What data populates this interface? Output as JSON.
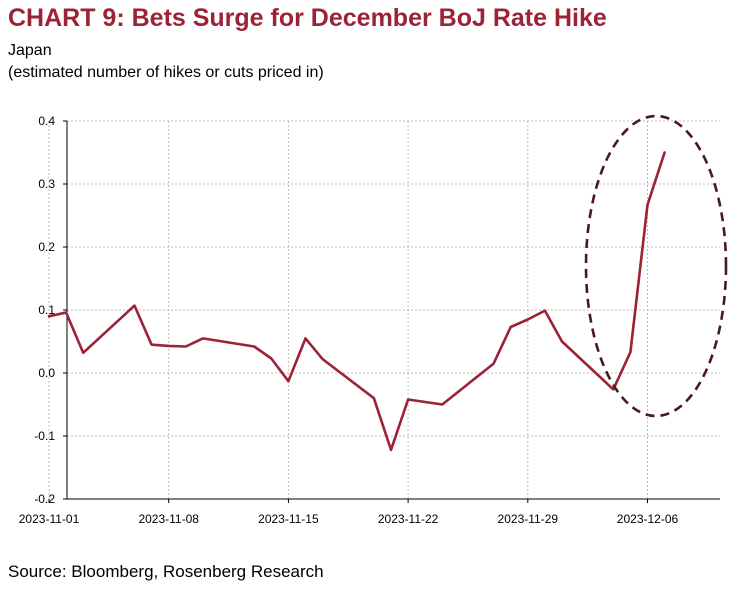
{
  "title": "CHART 9: Bets Surge for December BoJ Rate Hike",
  "subtitle_line1": "Japan",
  "subtitle_line2": "(estimated number of hikes or cuts priced in)",
  "source": "Source: Bloomberg, Rosenberg Research",
  "colors": {
    "title": "#9b2335",
    "series": "#9b2335",
    "ellipse": "#4a1a1a",
    "grid": "#bdbdbd",
    "axis": "#000000"
  },
  "chart_data": {
    "type": "line",
    "title": "CHART 9: Bets Surge for December BoJ Rate Hike",
    "xlabel": "",
    "ylabel": "",
    "ylim": [
      -0.2,
      0.4
    ],
    "yticks": [
      "-0.2",
      "-0.1",
      "0.0",
      "0.1",
      "0.2",
      "0.3",
      "0.4"
    ],
    "xticks": [
      "2023-11-01",
      "2023-11-08",
      "2023-11-15",
      "2023-11-22",
      "2023-11-29",
      "2023-12-06"
    ],
    "grid": true,
    "annotation": "dashed ellipse highlighting the final days",
    "series": [
      {
        "x": [
          "2023-11-01",
          "2023-11-02",
          "2023-11-03",
          "2023-11-06",
          "2023-11-07",
          "2023-11-08",
          "2023-11-09",
          "2023-11-10",
          "2023-11-13",
          "2023-11-14",
          "2023-11-15",
          "2023-11-16",
          "2023-11-17",
          "2023-11-20",
          "2023-11-21",
          "2023-11-22",
          "2023-11-24",
          "2023-11-27",
          "2023-11-28",
          "2023-11-29",
          "2023-11-30",
          "2023-12-01",
          "2023-12-04",
          "2023-12-05",
          "2023-12-06",
          "2023-12-07"
        ],
        "values": [
          0.09,
          0.096,
          0.032,
          0.107,
          0.045,
          0.043,
          0.042,
          0.055,
          0.042,
          0.023,
          -0.013,
          0.055,
          0.022,
          -0.04,
          -0.122,
          -0.042,
          -0.05,
          0.015,
          0.073,
          0.085,
          0.099,
          0.05,
          -0.026,
          0.033,
          0.267,
          0.35
        ]
      }
    ]
  }
}
